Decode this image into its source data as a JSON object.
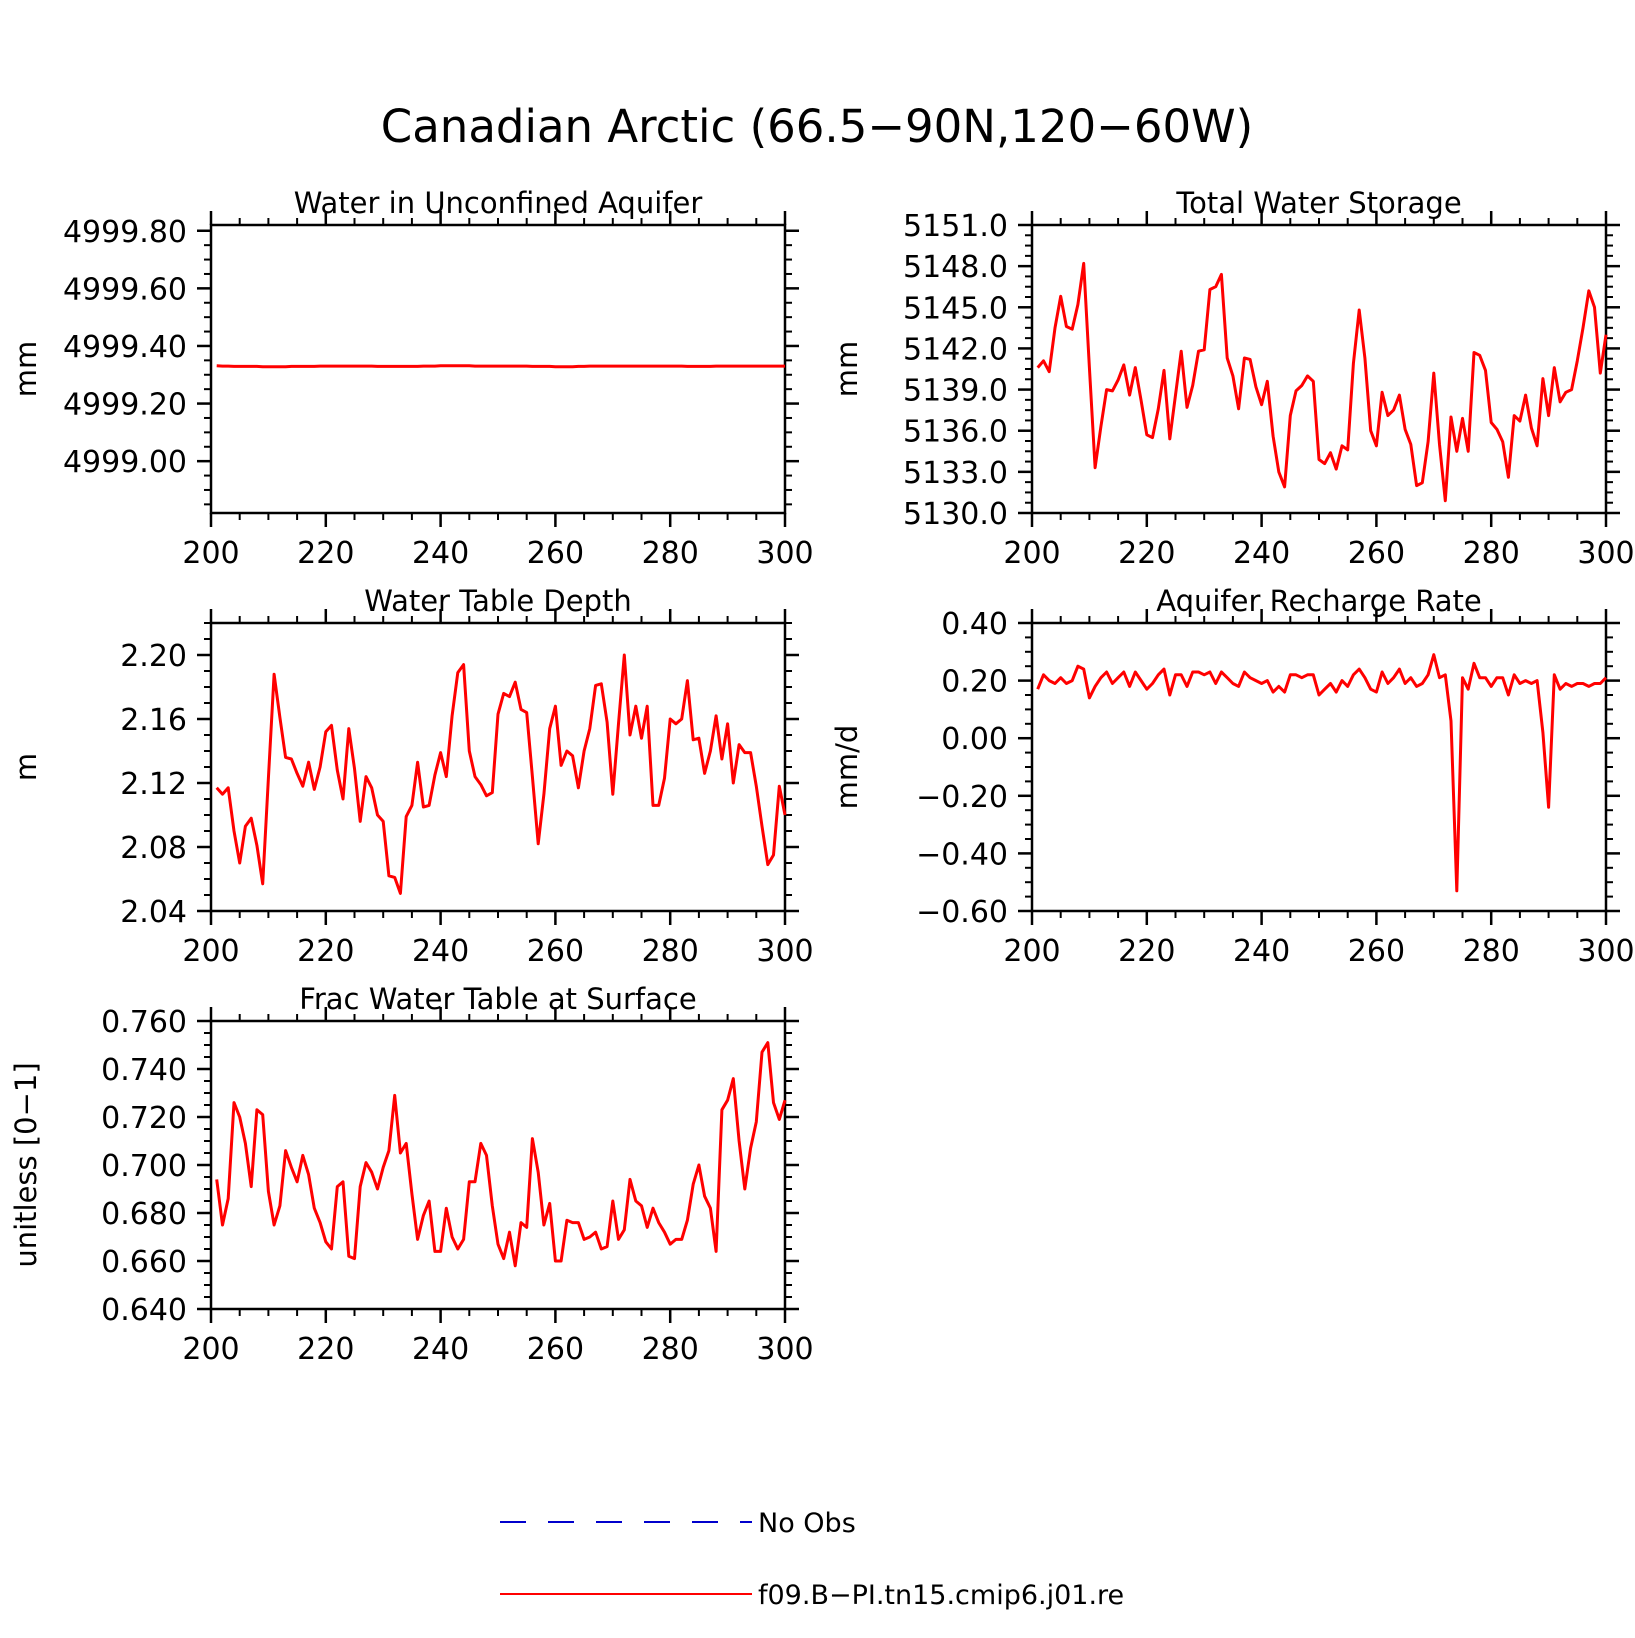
{
  "figure_title": "Canadian Arctic (66.5−90N,120−60W)",
  "legend": [
    {
      "label": "No Obs",
      "color": "#0000cc",
      "style": "dashed"
    },
    {
      "label": "f09.B−PI.tn15.cmip6.j01.re",
      "color": "#ff0000",
      "style": "solid"
    }
  ],
  "chart_data": [
    {
      "type": "line",
      "title": "Water in Unconfined Aquifer",
      "ylabel": "mm",
      "xlim": [
        200,
        300
      ],
      "ylim": [
        4998.82,
        4999.82
      ],
      "xticks": [
        200,
        220,
        240,
        260,
        280,
        300
      ],
      "yticks": [
        4999.0,
        4999.2,
        4999.4,
        4999.6,
        4999.8
      ],
      "ytick_decimals": 2,
      "color": "#ff0000",
      "x_start": 201,
      "values": [
        4999.331,
        4999.33,
        4999.33,
        4999.329,
        4999.329,
        4999.329,
        4999.329,
        4999.329,
        4999.328,
        4999.328,
        4999.328,
        4999.328,
        4999.328,
        4999.329,
        4999.329,
        4999.329,
        4999.329,
        4999.329,
        4999.33,
        4999.33,
        4999.33,
        4999.33,
        4999.33,
        4999.33,
        4999.33,
        4999.33,
        4999.33,
        4999.33,
        4999.329,
        4999.329,
        4999.329,
        4999.329,
        4999.329,
        4999.329,
        4999.329,
        4999.329,
        4999.33,
        4999.33,
        4999.33,
        4999.331,
        4999.331,
        4999.331,
        4999.331,
        4999.331,
        4999.331,
        4999.33,
        4999.33,
        4999.33,
        4999.33,
        4999.33,
        4999.33,
        4999.33,
        4999.33,
        4999.33,
        4999.33,
        4999.329,
        4999.329,
        4999.329,
        4999.329,
        4999.328,
        4999.328,
        4999.328,
        4999.328,
        4999.329,
        4999.329,
        4999.33,
        4999.33,
        4999.33,
        4999.33,
        4999.33,
        4999.33,
        4999.33,
        4999.33,
        4999.33,
        4999.33,
        4999.33,
        4999.33,
        4999.33,
        4999.33,
        4999.33,
        4999.33,
        4999.33,
        4999.329,
        4999.329,
        4999.329,
        4999.329,
        4999.329,
        4999.33,
        4999.33,
        4999.33,
        4999.33,
        4999.33,
        4999.33,
        4999.33,
        4999.33,
        4999.33,
        4999.33,
        4999.33,
        4999.33,
        4999.33
      ]
    },
    {
      "type": "line",
      "title": "Total Water Storage",
      "ylabel": "mm",
      "xlim": [
        200,
        300
      ],
      "ylim": [
        5130.0,
        5151.0
      ],
      "xticks": [
        200,
        220,
        240,
        260,
        280,
        300
      ],
      "yticks": [
        5130.0,
        5133.0,
        5136.0,
        5139.0,
        5142.0,
        5145.0,
        5148.0,
        5151.0
      ],
      "ytick_decimals": 1,
      "color": "#ff0000",
      "x_start": 201,
      "values": [
        5140.6,
        5141.1,
        5140.3,
        5143.5,
        5145.8,
        5143.6,
        5143.4,
        5145.2,
        5148.2,
        5140.6,
        5133.3,
        5136.3,
        5139.0,
        5138.9,
        5139.7,
        5140.8,
        5138.6,
        5140.6,
        5138.2,
        5135.7,
        5135.5,
        5137.6,
        5140.4,
        5135.4,
        5138.6,
        5141.8,
        5137.7,
        5139.3,
        5141.8,
        5141.9,
        5146.3,
        5146.5,
        5147.4,
        5141.3,
        5140.0,
        5137.6,
        5141.3,
        5141.2,
        5139.2,
        5137.9,
        5139.6,
        5135.6,
        5133.0,
        5131.9,
        5137.1,
        5138.9,
        5139.3,
        5140.0,
        5139.6,
        5133.9,
        5133.6,
        5134.4,
        5133.2,
        5134.9,
        5134.6,
        5140.9,
        5144.8,
        5141.3,
        5136.0,
        5134.9,
        5138.8,
        5137.1,
        5137.5,
        5138.6,
        5136.1,
        5135.0,
        5132.0,
        5132.2,
        5135.2,
        5140.2,
        5135.0,
        5130.9,
        5137.0,
        5134.5,
        5136.9,
        5134.5,
        5141.7,
        5141.5,
        5140.4,
        5136.6,
        5136.1,
        5135.2,
        5132.6,
        5137.1,
        5136.7,
        5138.6,
        5136.2,
        5134.9,
        5139.8,
        5137.1,
        5140.6,
        5138.1,
        5138.8,
        5139.0,
        5141.1,
        5143.5,
        5146.2,
        5145.0,
        5140.2,
        5143.0
      ]
    },
    {
      "type": "line",
      "title": "Water Table Depth",
      "ylabel": "m",
      "xlim": [
        200,
        300
      ],
      "ylim": [
        2.04,
        2.22
      ],
      "xticks": [
        200,
        220,
        240,
        260,
        280,
        300
      ],
      "yticks": [
        2.04,
        2.08,
        2.12,
        2.16,
        2.2
      ],
      "ytick_decimals": 2,
      "color": "#ff0000",
      "x_start": 201,
      "values": [
        2.117,
        2.113,
        2.117,
        2.09,
        2.07,
        2.093,
        2.098,
        2.081,
        2.057,
        2.123,
        2.188,
        2.161,
        2.136,
        2.135,
        2.126,
        2.118,
        2.133,
        2.116,
        2.13,
        2.152,
        2.156,
        2.128,
        2.11,
        2.154,
        2.129,
        2.096,
        2.124,
        2.117,
        2.1,
        2.096,
        2.062,
        2.061,
        2.051,
        2.099,
        2.106,
        2.133,
        2.105,
        2.106,
        2.125,
        2.139,
        2.124,
        2.162,
        2.189,
        2.194,
        2.14,
        2.124,
        2.119,
        2.112,
        2.114,
        2.163,
        2.176,
        2.174,
        2.183,
        2.166,
        2.164,
        2.124,
        2.082,
        2.113,
        2.154,
        2.168,
        2.131,
        2.14,
        2.137,
        2.117,
        2.14,
        2.154,
        2.181,
        2.182,
        2.158,
        2.113,
        2.157,
        2.2,
        2.15,
        2.168,
        2.148,
        2.168,
        2.106,
        2.106,
        2.123,
        2.16,
        2.157,
        2.16,
        2.184,
        2.147,
        2.148,
        2.126,
        2.14,
        2.162,
        2.135,
        2.157,
        2.12,
        2.144,
        2.139,
        2.139,
        2.118,
        2.093,
        2.069,
        2.075,
        2.118,
        2.1
      ]
    },
    {
      "type": "line",
      "title": "Aquifer Recharge Rate",
      "ylabel": "mm/d",
      "xlim": [
        200,
        300
      ],
      "ylim": [
        -0.6,
        0.4
      ],
      "xticks": [
        200,
        220,
        240,
        260,
        280,
        300
      ],
      "yticks": [
        -0.6,
        -0.4,
        -0.2,
        0.0,
        0.2,
        0.4
      ],
      "ytick_decimals": 2,
      "color": "#ff0000",
      "x_start": 201,
      "values": [
        0.17,
        0.22,
        0.2,
        0.19,
        0.21,
        0.19,
        0.2,
        0.25,
        0.24,
        0.14,
        0.18,
        0.21,
        0.23,
        0.19,
        0.21,
        0.23,
        0.18,
        0.23,
        0.2,
        0.17,
        0.19,
        0.22,
        0.24,
        0.15,
        0.22,
        0.22,
        0.18,
        0.23,
        0.23,
        0.22,
        0.23,
        0.19,
        0.23,
        0.21,
        0.19,
        0.18,
        0.23,
        0.21,
        0.2,
        0.19,
        0.2,
        0.16,
        0.18,
        0.16,
        0.22,
        0.22,
        0.21,
        0.22,
        0.22,
        0.15,
        0.17,
        0.19,
        0.16,
        0.2,
        0.18,
        0.22,
        0.24,
        0.21,
        0.17,
        0.16,
        0.23,
        0.19,
        0.21,
        0.24,
        0.19,
        0.21,
        0.18,
        0.19,
        0.22,
        0.29,
        0.21,
        0.22,
        0.06,
        -0.53,
        0.21,
        0.17,
        0.26,
        0.21,
        0.21,
        0.18,
        0.21,
        0.21,
        0.15,
        0.22,
        0.19,
        0.2,
        0.19,
        0.2,
        0.02,
        -0.24,
        0.22,
        0.17,
        0.19,
        0.18,
        0.19,
        0.19,
        0.18,
        0.19,
        0.19,
        0.21
      ]
    },
    {
      "type": "line",
      "title": "Frac Water Table at Surface",
      "ylabel": "unitless [0−1]",
      "xlim": [
        200,
        300
      ],
      "ylim": [
        0.64,
        0.76
      ],
      "xticks": [
        200,
        220,
        240,
        260,
        280,
        300
      ],
      "yticks": [
        0.64,
        0.66,
        0.68,
        0.7,
        0.72,
        0.74,
        0.76
      ],
      "ytick_decimals": 3,
      "color": "#ff0000",
      "x_start": 201,
      "values": [
        0.694,
        0.675,
        0.686,
        0.726,
        0.72,
        0.709,
        0.691,
        0.723,
        0.721,
        0.689,
        0.675,
        0.683,
        0.706,
        0.699,
        0.693,
        0.704,
        0.696,
        0.682,
        0.676,
        0.668,
        0.665,
        0.691,
        0.693,
        0.662,
        0.661,
        0.691,
        0.701,
        0.697,
        0.69,
        0.699,
        0.706,
        0.729,
        0.705,
        0.709,
        0.688,
        0.669,
        0.679,
        0.685,
        0.664,
        0.664,
        0.682,
        0.67,
        0.665,
        0.669,
        0.693,
        0.693,
        0.709,
        0.704,
        0.683,
        0.667,
        0.661,
        0.672,
        0.658,
        0.676,
        0.674,
        0.711,
        0.697,
        0.675,
        0.684,
        0.66,
        0.66,
        0.677,
        0.676,
        0.676,
        0.669,
        0.67,
        0.672,
        0.665,
        0.666,
        0.685,
        0.669,
        0.673,
        0.694,
        0.685,
        0.683,
        0.674,
        0.682,
        0.676,
        0.672,
        0.667,
        0.669,
        0.669,
        0.677,
        0.692,
        0.7,
        0.687,
        0.682,
        0.664,
        0.723,
        0.727,
        0.736,
        0.71,
        0.69,
        0.707,
        0.718,
        0.747,
        0.751,
        0.726,
        0.719,
        0.727
      ]
    }
  ]
}
